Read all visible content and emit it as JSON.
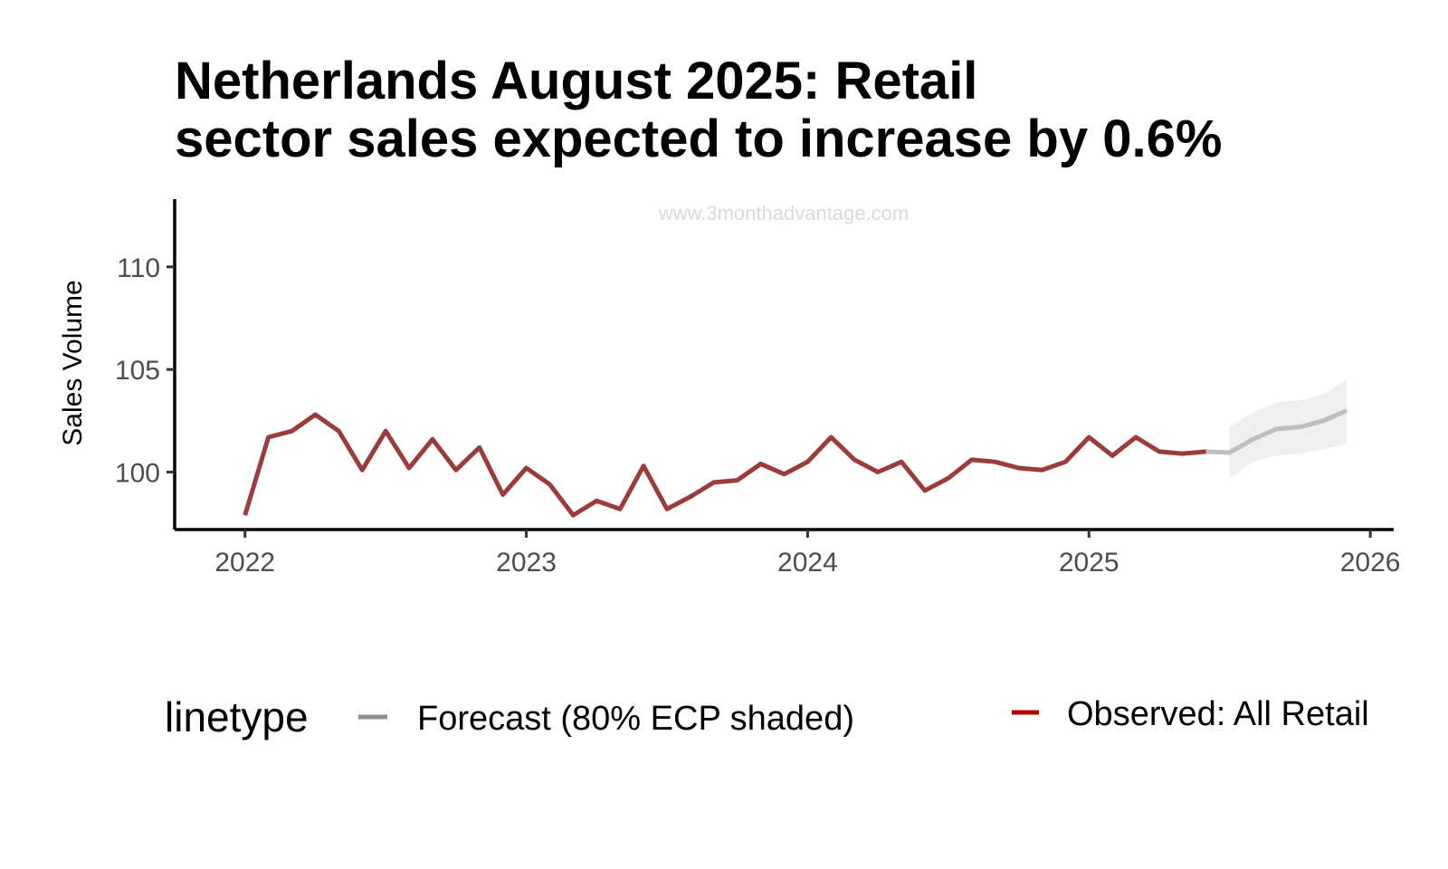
{
  "title_lines": [
    "Netherlands August 2025: Retail",
    "sector sales expected to increase by 0.6%"
  ],
  "watermark": "www.3monthadvantage.com",
  "chart_data": {
    "type": "line",
    "title": "Netherlands August 2025: Retail sector sales expected to increase by 0.6%",
    "xlabel": "",
    "ylabel": "Sales Volume",
    "x_ticks": [
      "2022",
      "2023",
      "2024",
      "2025",
      "2026"
    ],
    "y_ticks": [
      100,
      105,
      110
    ],
    "xlim": [
      "2021-10",
      "2026-02"
    ],
    "ylim": [
      97.2,
      113.3
    ],
    "grid": false,
    "legend_position": "bottom",
    "legend_title": "linetype",
    "series": [
      {
        "name": "Observed: All Retail",
        "color": "#9b3b3b",
        "x": [
          "2022-01",
          "2022-02",
          "2022-03",
          "2022-04",
          "2022-05",
          "2022-06",
          "2022-07",
          "2022-08",
          "2022-09",
          "2022-10",
          "2022-11",
          "2022-12",
          "2023-01",
          "2023-02",
          "2023-03",
          "2023-04",
          "2023-05",
          "2023-06",
          "2023-07",
          "2023-08",
          "2023-09",
          "2023-10",
          "2023-11",
          "2023-12",
          "2024-01",
          "2024-02",
          "2024-03",
          "2024-04",
          "2024-05",
          "2024-06",
          "2024-07",
          "2024-08",
          "2024-09",
          "2024-10",
          "2024-11",
          "2024-12",
          "2025-01",
          "2025-02",
          "2025-03",
          "2025-04",
          "2025-05",
          "2025-06"
        ],
        "values": [
          97.9,
          101.7,
          102.0,
          102.8,
          102.0,
          100.1,
          102.0,
          100.2,
          101.6,
          100.1,
          101.2,
          98.9,
          100.2,
          99.4,
          97.9,
          98.6,
          98.2,
          100.3,
          98.2,
          98.8,
          99.5,
          99.6,
          100.4,
          99.9,
          100.5,
          101.7,
          100.6,
          100.0,
          100.5,
          99.1,
          99.7,
          100.6,
          100.5,
          100.2,
          100.1,
          100.5,
          101.7,
          100.8,
          101.7,
          101.0,
          100.9,
          101.0
        ]
      },
      {
        "name": "Forecast (80% ECP shaded)",
        "color": "#bdbdbd",
        "x": [
          "2025-06",
          "2025-07",
          "2025-08",
          "2025-09",
          "2025-10",
          "2025-11",
          "2025-12"
        ],
        "values": [
          101.0,
          100.95,
          101.6,
          102.1,
          102.2,
          102.5,
          103.0
        ],
        "band_x": [
          "2025-07",
          "2025-08",
          "2025-09",
          "2025-10",
          "2025-11",
          "2025-12"
        ],
        "band_low": [
          99.7,
          100.5,
          100.8,
          100.9,
          101.1,
          101.4
        ],
        "band_high": [
          102.2,
          102.9,
          103.4,
          103.5,
          103.8,
          104.5
        ]
      }
    ],
    "legend": [
      {
        "label": "Forecast (80% ECP shaded)",
        "color": "#8c8c8c"
      },
      {
        "label": "Observed: All Retail",
        "color": "#b00000"
      }
    ]
  }
}
